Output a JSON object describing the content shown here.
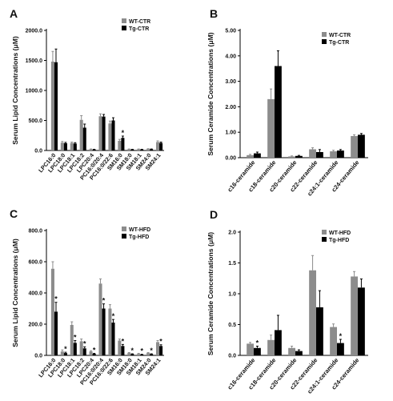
{
  "chart_data": [
    {
      "panel": "A",
      "type": "bar",
      "ylabel": "Serum Lipid Concentrations (μM)",
      "ylim": [
        0,
        2000
      ],
      "yticks": [
        "0.0",
        "500.0",
        "1000.0",
        "1500.0",
        "2000.0"
      ],
      "categories": [
        "LPC16:0",
        "LPC18:0",
        "LPC18:1",
        "LPC18:2",
        "LPC20:4",
        "PC16:0/20:4",
        "PC16:0/22:6",
        "SM16:0",
        "SM18:0",
        "SM18:1",
        "SM24:0",
        "SM24:1"
      ],
      "series": [
        {
          "name": "WT-CTR",
          "color": "#8c8c8c",
          "values": [
            1480,
            130,
            125,
            510,
            20,
            570,
            450,
            160,
            20,
            20,
            25,
            140
          ],
          "errors": [
            170,
            20,
            15,
            70,
            5,
            40,
            40,
            25,
            5,
            5,
            5,
            20
          ]
        },
        {
          "name": "Tg-CTR",
          "color": "#000000",
          "values": [
            1470,
            120,
            115,
            380,
            15,
            565,
            500,
            210,
            15,
            15,
            20,
            125
          ],
          "errors": [
            220,
            15,
            15,
            60,
            5,
            35,
            45,
            30,
            5,
            5,
            5,
            15
          ]
        }
      ],
      "annotations": [
        {
          "category": "SM16:0",
          "text": "*"
        }
      ],
      "legend": "top-right"
    },
    {
      "panel": "B",
      "type": "bar",
      "ylabel": "Serum Ceramide Concentrations (μM)",
      "ylim": [
        0,
        5
      ],
      "yticks": [
        "0.00",
        "1.00",
        "2.00",
        "3.00",
        "4.00",
        "5.00"
      ],
      "categories": [
        "c16-ceramide",
        "c18-ceramide",
        "c20-ceramide",
        "c22-ceramide",
        "c24:1-ceramide",
        "c24-ceramide"
      ],
      "series": [
        {
          "name": "WT-CTR",
          "color": "#8c8c8c",
          "values": [
            0.1,
            2.3,
            0.05,
            0.33,
            0.25,
            0.85
          ],
          "errors": [
            0.03,
            0.4,
            0.02,
            0.06,
            0.04,
            0.05
          ]
        },
        {
          "name": "Tg-CTR",
          "color": "#000000",
          "values": [
            0.17,
            3.6,
            0.07,
            0.22,
            0.28,
            0.9
          ],
          "errors": [
            0.05,
            0.6,
            0.02,
            0.1,
            0.04,
            0.05
          ]
        }
      ],
      "annotations": [],
      "legend": "top-right"
    },
    {
      "panel": "C",
      "type": "bar",
      "ylabel": "Serum Lipid Concentrations (μM)",
      "ylim": [
        0,
        800
      ],
      "yticks": [
        "0.0",
        "200.0",
        "400.0",
        "600.0",
        "800.0"
      ],
      "categories": [
        "LPC16:0",
        "LPC18:0",
        "LPC18:1",
        "LPC18:2",
        "LPC20:4",
        "PC16:0/20:4",
        "PC16:0/22:6",
        "SM16:0",
        "SM18:0",
        "SM18:1",
        "SM24:0",
        "SM24:1"
      ],
      "series": [
        {
          "name": "WT-HFD",
          "color": "#8c8c8c",
          "values": [
            555,
            25,
            195,
            90,
            25,
            460,
            300,
            95,
            15,
            10,
            15,
            85
          ],
          "errors": [
            45,
            10,
            20,
            15,
            5,
            30,
            25,
            10,
            3,
            3,
            3,
            10
          ]
        },
        {
          "name": "Tg-HFD",
          "color": "#000000",
          "values": [
            280,
            15,
            80,
            45,
            10,
            300,
            210,
            60,
            8,
            5,
            8,
            60
          ],
          "errors": [
            60,
            5,
            15,
            10,
            3,
            30,
            20,
            10,
            2,
            2,
            2,
            8
          ]
        }
      ],
      "annotations": [
        {
          "category": "LPC16:0",
          "text": "*"
        },
        {
          "category": "LPC18:0",
          "text": "*"
        },
        {
          "category": "LPC18:1",
          "text": "*"
        },
        {
          "category": "LPC18:2",
          "text": "*"
        },
        {
          "category": "LPC20:4",
          "text": "*"
        },
        {
          "category": "PC16:0/20:4",
          "text": "*"
        },
        {
          "category": "PC16:0/22:6",
          "text": "*"
        },
        {
          "category": "SM16:0",
          "text": "*"
        },
        {
          "category": "SM18:0",
          "text": "*"
        },
        {
          "category": "SM18:1",
          "text": "*"
        },
        {
          "category": "SM24:0",
          "text": "*"
        },
        {
          "category": "SM24:1",
          "text": "*"
        }
      ],
      "legend": "top-right"
    },
    {
      "panel": "D",
      "type": "bar",
      "ylabel": "Serum Ceramide Concentrations (μM)",
      "ylim": [
        0,
        2
      ],
      "yticks": [
        "0.0",
        "0.5",
        "1.0",
        "1.5",
        "2.0"
      ],
      "categories": [
        "c16-ceramide",
        "c18-ceramide",
        "c20-ceramide",
        "c22-ceramide",
        "c24:1-ceramide",
        "c24-ceramide"
      ],
      "series": [
        {
          "name": "WT-HFD",
          "color": "#8c8c8c",
          "values": [
            0.19,
            0.25,
            0.12,
            1.38,
            0.46,
            1.28
          ],
          "errors": [
            0.02,
            0.08,
            0.03,
            0.24,
            0.05,
            0.08
          ]
        },
        {
          "name": "Tg-HFD",
          "color": "#000000",
          "values": [
            0.12,
            0.41,
            0.07,
            0.78,
            0.2,
            1.1
          ],
          "errors": [
            0.03,
            0.24,
            0.02,
            0.27,
            0.06,
            0.14
          ]
        }
      ],
      "annotations": [
        {
          "category": "c16-ceramide",
          "text": "*"
        },
        {
          "category": "c24:1-ceramide",
          "text": "*"
        }
      ],
      "legend": "top-right"
    }
  ]
}
